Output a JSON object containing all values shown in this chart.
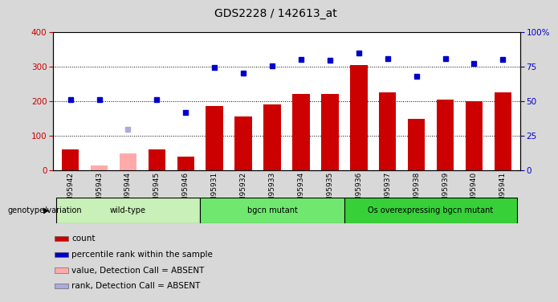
{
  "title": "GDS2228 / 142613_at",
  "samples": [
    "GSM95942",
    "GSM95943",
    "GSM95944",
    "GSM95945",
    "GSM95946",
    "GSM95931",
    "GSM95932",
    "GSM95933",
    "GSM95934",
    "GSM95935",
    "GSM95936",
    "GSM95937",
    "GSM95938",
    "GSM95939",
    "GSM95940",
    "GSM95941"
  ],
  "counts": [
    60,
    15,
    50,
    60,
    40,
    185,
    155,
    190,
    220,
    220,
    305,
    225,
    150,
    205,
    200,
    225
  ],
  "counts_absent": [
    false,
    true,
    true,
    false,
    false,
    false,
    false,
    false,
    false,
    false,
    false,
    false,
    false,
    false,
    false,
    false
  ],
  "percentile_ranks": [
    51,
    51,
    30,
    51,
    42,
    74.5,
    70.5,
    75.5,
    80,
    79.5,
    84.5,
    80.5,
    68,
    80.5,
    77.5,
    80
  ],
  "rank_absent": [
    false,
    false,
    true,
    false,
    false,
    false,
    false,
    false,
    false,
    false,
    false,
    false,
    false,
    false,
    false,
    false
  ],
  "groups": [
    {
      "label": "wild-type",
      "start": 0,
      "end": 5,
      "color": "#c8f0b8"
    },
    {
      "label": "bgcn mutant",
      "start": 5,
      "end": 10,
      "color": "#70e870"
    },
    {
      "label": "Os overexpressing bgcn mutant",
      "start": 10,
      "end": 16,
      "color": "#38d038"
    }
  ],
  "ylim": [
    0,
    400
  ],
  "right_ylim": [
    0,
    100
  ],
  "yticks_left": [
    0,
    100,
    200,
    300,
    400
  ],
  "yticks_right": [
    0,
    25,
    50,
    75,
    100
  ],
  "bar_color_present": "#cc0000",
  "bar_color_absent": "#ffaaaa",
  "dot_color_present": "#0000cc",
  "dot_color_absent": "#aaaadd",
  "plot_bg": "#ffffff",
  "fig_bg": "#d8d8d8",
  "genotype_label": "genotype/variation",
  "legend_items": [
    {
      "label": "count",
      "color": "#cc0000"
    },
    {
      "label": "percentile rank within the sample",
      "color": "#0000cc"
    },
    {
      "label": "value, Detection Call = ABSENT",
      "color": "#ffaaaa"
    },
    {
      "label": "rank, Detection Call = ABSENT",
      "color": "#aaaadd"
    }
  ]
}
